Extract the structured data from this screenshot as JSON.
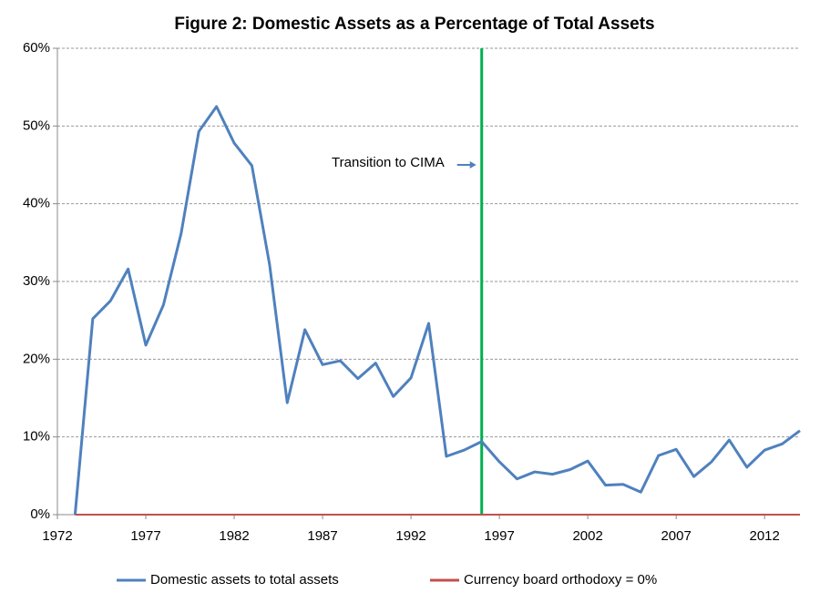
{
  "chart_data": {
    "type": "line",
    "title": "Figure 2: Domestic Assets as a Percentage of Total Assets",
    "x": [
      1973,
      1974,
      1975,
      1976,
      1977,
      1978,
      1979,
      1980,
      1981,
      1982,
      1983,
      1984,
      1985,
      1986,
      1987,
      1988,
      1989,
      1990,
      1991,
      1992,
      1993,
      1994,
      1995,
      1996,
      1997,
      1998,
      1999,
      2000,
      2001,
      2002,
      2003,
      2004,
      2005,
      2006,
      2007,
      2008,
      2009,
      2010,
      2011,
      2012,
      2013,
      2014
    ],
    "series": [
      {
        "name": "Domestic assets to total assets",
        "color": "#4f81bd",
        "values": [
          0,
          25.2,
          27.5,
          31.6,
          21.8,
          27.0,
          36.2,
          49.3,
          52.5,
          47.8,
          44.9,
          32.2,
          14.4,
          23.8,
          19.3,
          19.8,
          17.5,
          19.5,
          15.2,
          17.6,
          24.6,
          7.5,
          8.3,
          9.4,
          6.8,
          4.6,
          5.5,
          5.2,
          5.8,
          6.9,
          3.8,
          3.9,
          2.9,
          7.6,
          8.4,
          4.9,
          6.8,
          9.6,
          6.1,
          8.3,
          9.1,
          10.8
        ]
      },
      {
        "name": "Currency board orthodoxy = 0%",
        "color": "#c0504d",
        "values": [
          0,
          0,
          0,
          0,
          0,
          0,
          0,
          0,
          0,
          0,
          0,
          0,
          0,
          0,
          0,
          0,
          0,
          0,
          0,
          0,
          0,
          0,
          0,
          0,
          0,
          0,
          0,
          0,
          0,
          0,
          0,
          0,
          0,
          0,
          0,
          0,
          0,
          0,
          0,
          0,
          0,
          0
        ]
      }
    ],
    "xlim": [
      1972,
      2014
    ],
    "xticks": [
      1972,
      1977,
      1982,
      1987,
      1992,
      1997,
      2002,
      2007,
      2012
    ],
    "ylim": [
      0,
      60
    ],
    "yticks": [
      {
        "value": 0,
        "label": "0%"
      },
      {
        "value": 10,
        "label": "10%"
      },
      {
        "value": 20,
        "label": "20%"
      },
      {
        "value": 30,
        "label": "30%"
      },
      {
        "value": 40,
        "label": "40%"
      },
      {
        "value": 50,
        "label": "50%"
      },
      {
        "value": 60,
        "label": "60%"
      }
    ],
    "grid": true,
    "vline": {
      "x": 1996,
      "color": "#00b050"
    },
    "annotation": {
      "text": "Transition to CIMA",
      "x": 1996,
      "y": 45
    },
    "legend": "bottom"
  }
}
